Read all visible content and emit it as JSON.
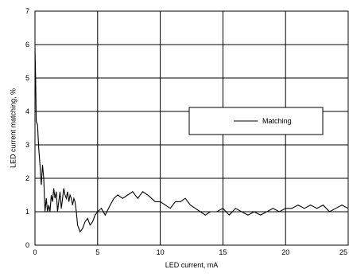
{
  "chart_data": {
    "type": "line",
    "title": "",
    "xlabel": "LED current, mA",
    "ylabel": "LED current matching, %",
    "xlim": [
      0,
      25
    ],
    "ylim": [
      0,
      7
    ],
    "xticks": [
      "0",
      "5",
      "10",
      "15",
      "20",
      "25"
    ],
    "yticks": [
      "0",
      "1",
      "2",
      "3",
      "4",
      "5",
      "6",
      "7"
    ],
    "grid": true,
    "legend_position": "right",
    "series": [
      {
        "name": "Matching",
        "color": "#000000",
        "x": [
          0.0,
          0.05,
          0.1,
          0.2,
          0.3,
          0.4,
          0.5,
          0.6,
          0.7,
          0.8,
          0.9,
          1.0,
          1.1,
          1.2,
          1.3,
          1.4,
          1.5,
          1.6,
          1.7,
          1.8,
          1.9,
          2.0,
          2.1,
          2.2,
          2.3,
          2.4,
          2.5,
          2.6,
          2.7,
          2.8,
          2.9,
          3.0,
          3.1,
          3.2,
          3.3,
          3.4,
          3.5,
          3.6,
          3.8,
          4.0,
          4.2,
          4.4,
          4.6,
          4.8,
          5.0,
          5.3,
          5.6,
          6.0,
          6.3,
          6.6,
          7.0,
          7.4,
          7.8,
          8.2,
          8.6,
          9.0,
          9.3,
          9.6,
          10.0,
          10.4,
          10.8,
          11.2,
          11.6,
          12.0,
          12.4,
          12.8,
          13.2,
          13.6,
          14.0,
          14.5,
          15.0,
          15.5,
          16.0,
          16.5,
          17.0,
          17.5,
          18.0,
          18.5,
          19.0,
          19.5,
          20.0,
          20.5,
          21.0,
          21.5,
          22.0,
          22.5,
          23.0,
          23.5,
          24.0,
          24.5,
          25.0
        ],
        "values": [
          5.9,
          5.0,
          3.7,
          3.6,
          2.9,
          2.4,
          1.8,
          2.4,
          2.0,
          1.0,
          1.4,
          1.0,
          1.2,
          1.0,
          1.5,
          1.3,
          1.7,
          1.4,
          1.6,
          1.0,
          1.3,
          1.6,
          1.1,
          1.4,
          1.7,
          1.5,
          1.4,
          1.6,
          1.3,
          1.5,
          1.4,
          1.2,
          1.4,
          1.3,
          1.0,
          0.6,
          0.5,
          0.4,
          0.5,
          0.7,
          0.8,
          0.6,
          0.7,
          0.9,
          1.0,
          1.1,
          0.9,
          1.2,
          1.4,
          1.5,
          1.4,
          1.5,
          1.6,
          1.4,
          1.6,
          1.5,
          1.4,
          1.3,
          1.3,
          1.2,
          1.1,
          1.3,
          1.3,
          1.4,
          1.2,
          1.1,
          1.0,
          0.9,
          1.0,
          1.0,
          1.1,
          0.9,
          1.1,
          1.0,
          0.9,
          1.0,
          0.9,
          1.0,
          1.1,
          1.0,
          1.1,
          1.1,
          1.2,
          1.1,
          1.2,
          1.1,
          1.2,
          1.0,
          1.1,
          1.2,
          1.1
        ]
      }
    ],
    "legend_entries": [
      "Matching"
    ]
  }
}
